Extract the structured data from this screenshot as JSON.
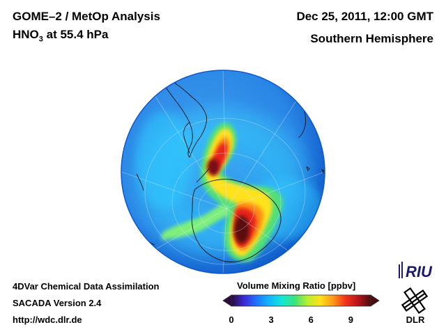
{
  "header": {
    "title": "GOME–2 / MetOp Analysis",
    "species": "HNO",
    "species_sub": "3",
    "level": " at 55.4 hPa",
    "datetime": "Dec 25, 2011, 12:00 GMT",
    "region": "Southern Hemisphere"
  },
  "footer": {
    "line1": "4DVar Chemical Data Assimilation",
    "line2": "SACADA Version 2.4",
    "line3": "http://wdc.dlr.de"
  },
  "colorbar": {
    "title": "Volume Mixing Ratio [ppbv]",
    "ticks": [
      "0",
      "3",
      "6",
      "9"
    ],
    "range": [
      0,
      10.5
    ],
    "colors": [
      "#2b0a3d",
      "#3a2bd6",
      "#1f74ff",
      "#11b7ff",
      "#16e6d6",
      "#3ee07a",
      "#b7ef2e",
      "#ffe11a",
      "#ff9a17",
      "#f4331a",
      "#b5151a",
      "#4a0d0d"
    ]
  },
  "logos": {
    "riu": "RIU",
    "dlr": "DLR"
  },
  "map": {
    "projection": "orthographic",
    "hemisphere": "southern",
    "ocean_color": "#2a87e6",
    "rim_color": "#0f58c8"
  }
}
